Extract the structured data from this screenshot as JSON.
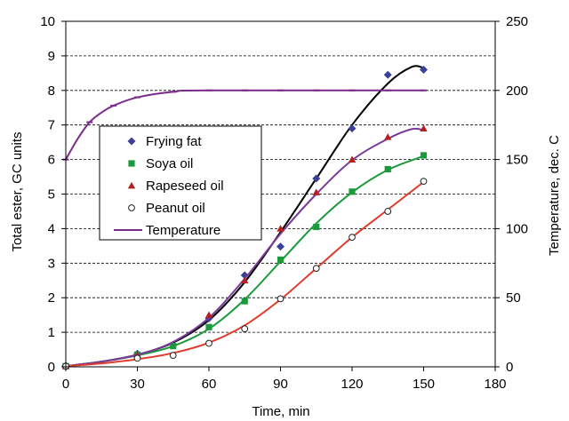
{
  "chart_data": {
    "type": "scatter",
    "xlabel": "Time, min",
    "ylabel": "Total ester,  GC units",
    "y2label": "Temperature, dec. C",
    "xlim": [
      0,
      180
    ],
    "ylim": [
      0,
      10
    ],
    "y2lim": [
      0,
      250
    ],
    "xticks": [
      "0",
      "30",
      "60",
      "90",
      "120",
      "150",
      "180"
    ],
    "yticks": [
      "0",
      "1",
      "2",
      "3",
      "4",
      "5",
      "6",
      "7",
      "8",
      "9",
      "10"
    ],
    "y2ticks": [
      "0",
      "50",
      "100",
      "150",
      "200",
      "250"
    ],
    "grid": "horizontal dashed",
    "legend_position": "upper-left",
    "series": [
      {
        "name": "Frying fat",
        "marker": "diamond",
        "color": "#3a3f9a",
        "fit_color": "#000000",
        "points": [
          [
            0,
            0.03
          ],
          [
            30,
            0.38
          ],
          [
            60,
            1.4
          ],
          [
            75,
            2.65
          ],
          [
            90,
            3.48
          ],
          [
            105,
            5.45
          ],
          [
            120,
            6.9
          ],
          [
            135,
            8.45
          ],
          [
            150,
            8.6
          ]
        ],
        "fit": [
          [
            0,
            0.02
          ],
          [
            15,
            0.15
          ],
          [
            30,
            0.35
          ],
          [
            45,
            0.7
          ],
          [
            60,
            1.35
          ],
          [
            75,
            2.45
          ],
          [
            90,
            3.9
          ],
          [
            105,
            5.45
          ],
          [
            120,
            7.0
          ],
          [
            135,
            8.2
          ],
          [
            145,
            8.68
          ],
          [
            150,
            8.65
          ]
        ]
      },
      {
        "name": "Soya oil",
        "marker": "square",
        "color": "#1a9a3a",
        "fit_color": "#1a9a3a",
        "points": [
          [
            0,
            0.02
          ],
          [
            30,
            0.35
          ],
          [
            45,
            0.6
          ],
          [
            60,
            1.15
          ],
          [
            75,
            1.9
          ],
          [
            90,
            3.1
          ],
          [
            105,
            4.05
          ],
          [
            120,
            5.07
          ],
          [
            135,
            5.72
          ],
          [
            150,
            6.12
          ]
        ],
        "fit": [
          [
            0,
            0.02
          ],
          [
            15,
            0.15
          ],
          [
            30,
            0.33
          ],
          [
            45,
            0.6
          ],
          [
            60,
            1.1
          ],
          [
            75,
            1.95
          ],
          [
            90,
            3.05
          ],
          [
            105,
            4.15
          ],
          [
            120,
            5.05
          ],
          [
            135,
            5.7
          ],
          [
            150,
            6.1
          ]
        ]
      },
      {
        "name": "Rapeseed oil",
        "marker": "triangle",
        "color": "#b52020",
        "fit_color": "#7a3a9a",
        "points": [
          [
            0,
            0.02
          ],
          [
            30,
            0.33
          ],
          [
            60,
            1.5
          ],
          [
            75,
            2.5
          ],
          [
            90,
            4.0
          ],
          [
            105,
            5.05
          ],
          [
            120,
            6.0
          ],
          [
            135,
            6.65
          ],
          [
            150,
            6.9
          ]
        ],
        "fit": [
          [
            0,
            0.02
          ],
          [
            15,
            0.15
          ],
          [
            30,
            0.35
          ],
          [
            45,
            0.72
          ],
          [
            60,
            1.42
          ],
          [
            75,
            2.55
          ],
          [
            90,
            3.85
          ],
          [
            105,
            5.0
          ],
          [
            120,
            5.98
          ],
          [
            135,
            6.6
          ],
          [
            145,
            6.88
          ],
          [
            150,
            6.85
          ]
        ]
      },
      {
        "name": "Peanut oil",
        "marker": "circle-open",
        "color": "#222222",
        "fit_color": "#e03a2a",
        "points": [
          [
            0,
            0.02
          ],
          [
            30,
            0.25
          ],
          [
            45,
            0.33
          ],
          [
            60,
            0.68
          ],
          [
            75,
            1.1
          ],
          [
            90,
            1.97
          ],
          [
            105,
            2.85
          ],
          [
            120,
            3.75
          ],
          [
            135,
            4.5
          ],
          [
            150,
            5.37
          ]
        ],
        "fit": [
          [
            0,
            0.02
          ],
          [
            15,
            0.1
          ],
          [
            30,
            0.22
          ],
          [
            45,
            0.4
          ],
          [
            60,
            0.7
          ],
          [
            75,
            1.2
          ],
          [
            90,
            1.95
          ],
          [
            105,
            2.85
          ],
          [
            120,
            3.75
          ],
          [
            135,
            4.55
          ],
          [
            150,
            5.35
          ]
        ]
      },
      {
        "name": "Temperature",
        "marker": "dash",
        "color": "#7a2a8a",
        "axis": "right",
        "points": [
          [
            0,
            150
          ],
          [
            10,
            177
          ],
          [
            20,
            189
          ],
          [
            30,
            195
          ],
          [
            45,
            199
          ],
          [
            60,
            200
          ],
          [
            75,
            200
          ],
          [
            90,
            200
          ],
          [
            105,
            200
          ],
          [
            120,
            200
          ],
          [
            135,
            200
          ],
          [
            150,
            200
          ]
        ],
        "fit": [
          [
            0,
            150
          ],
          [
            5,
            165
          ],
          [
            10,
            177
          ],
          [
            15,
            184
          ],
          [
            20,
            189
          ],
          [
            30,
            195
          ],
          [
            45,
            199
          ],
          [
            60,
            200
          ],
          [
            150,
            200
          ]
        ]
      }
    ]
  }
}
